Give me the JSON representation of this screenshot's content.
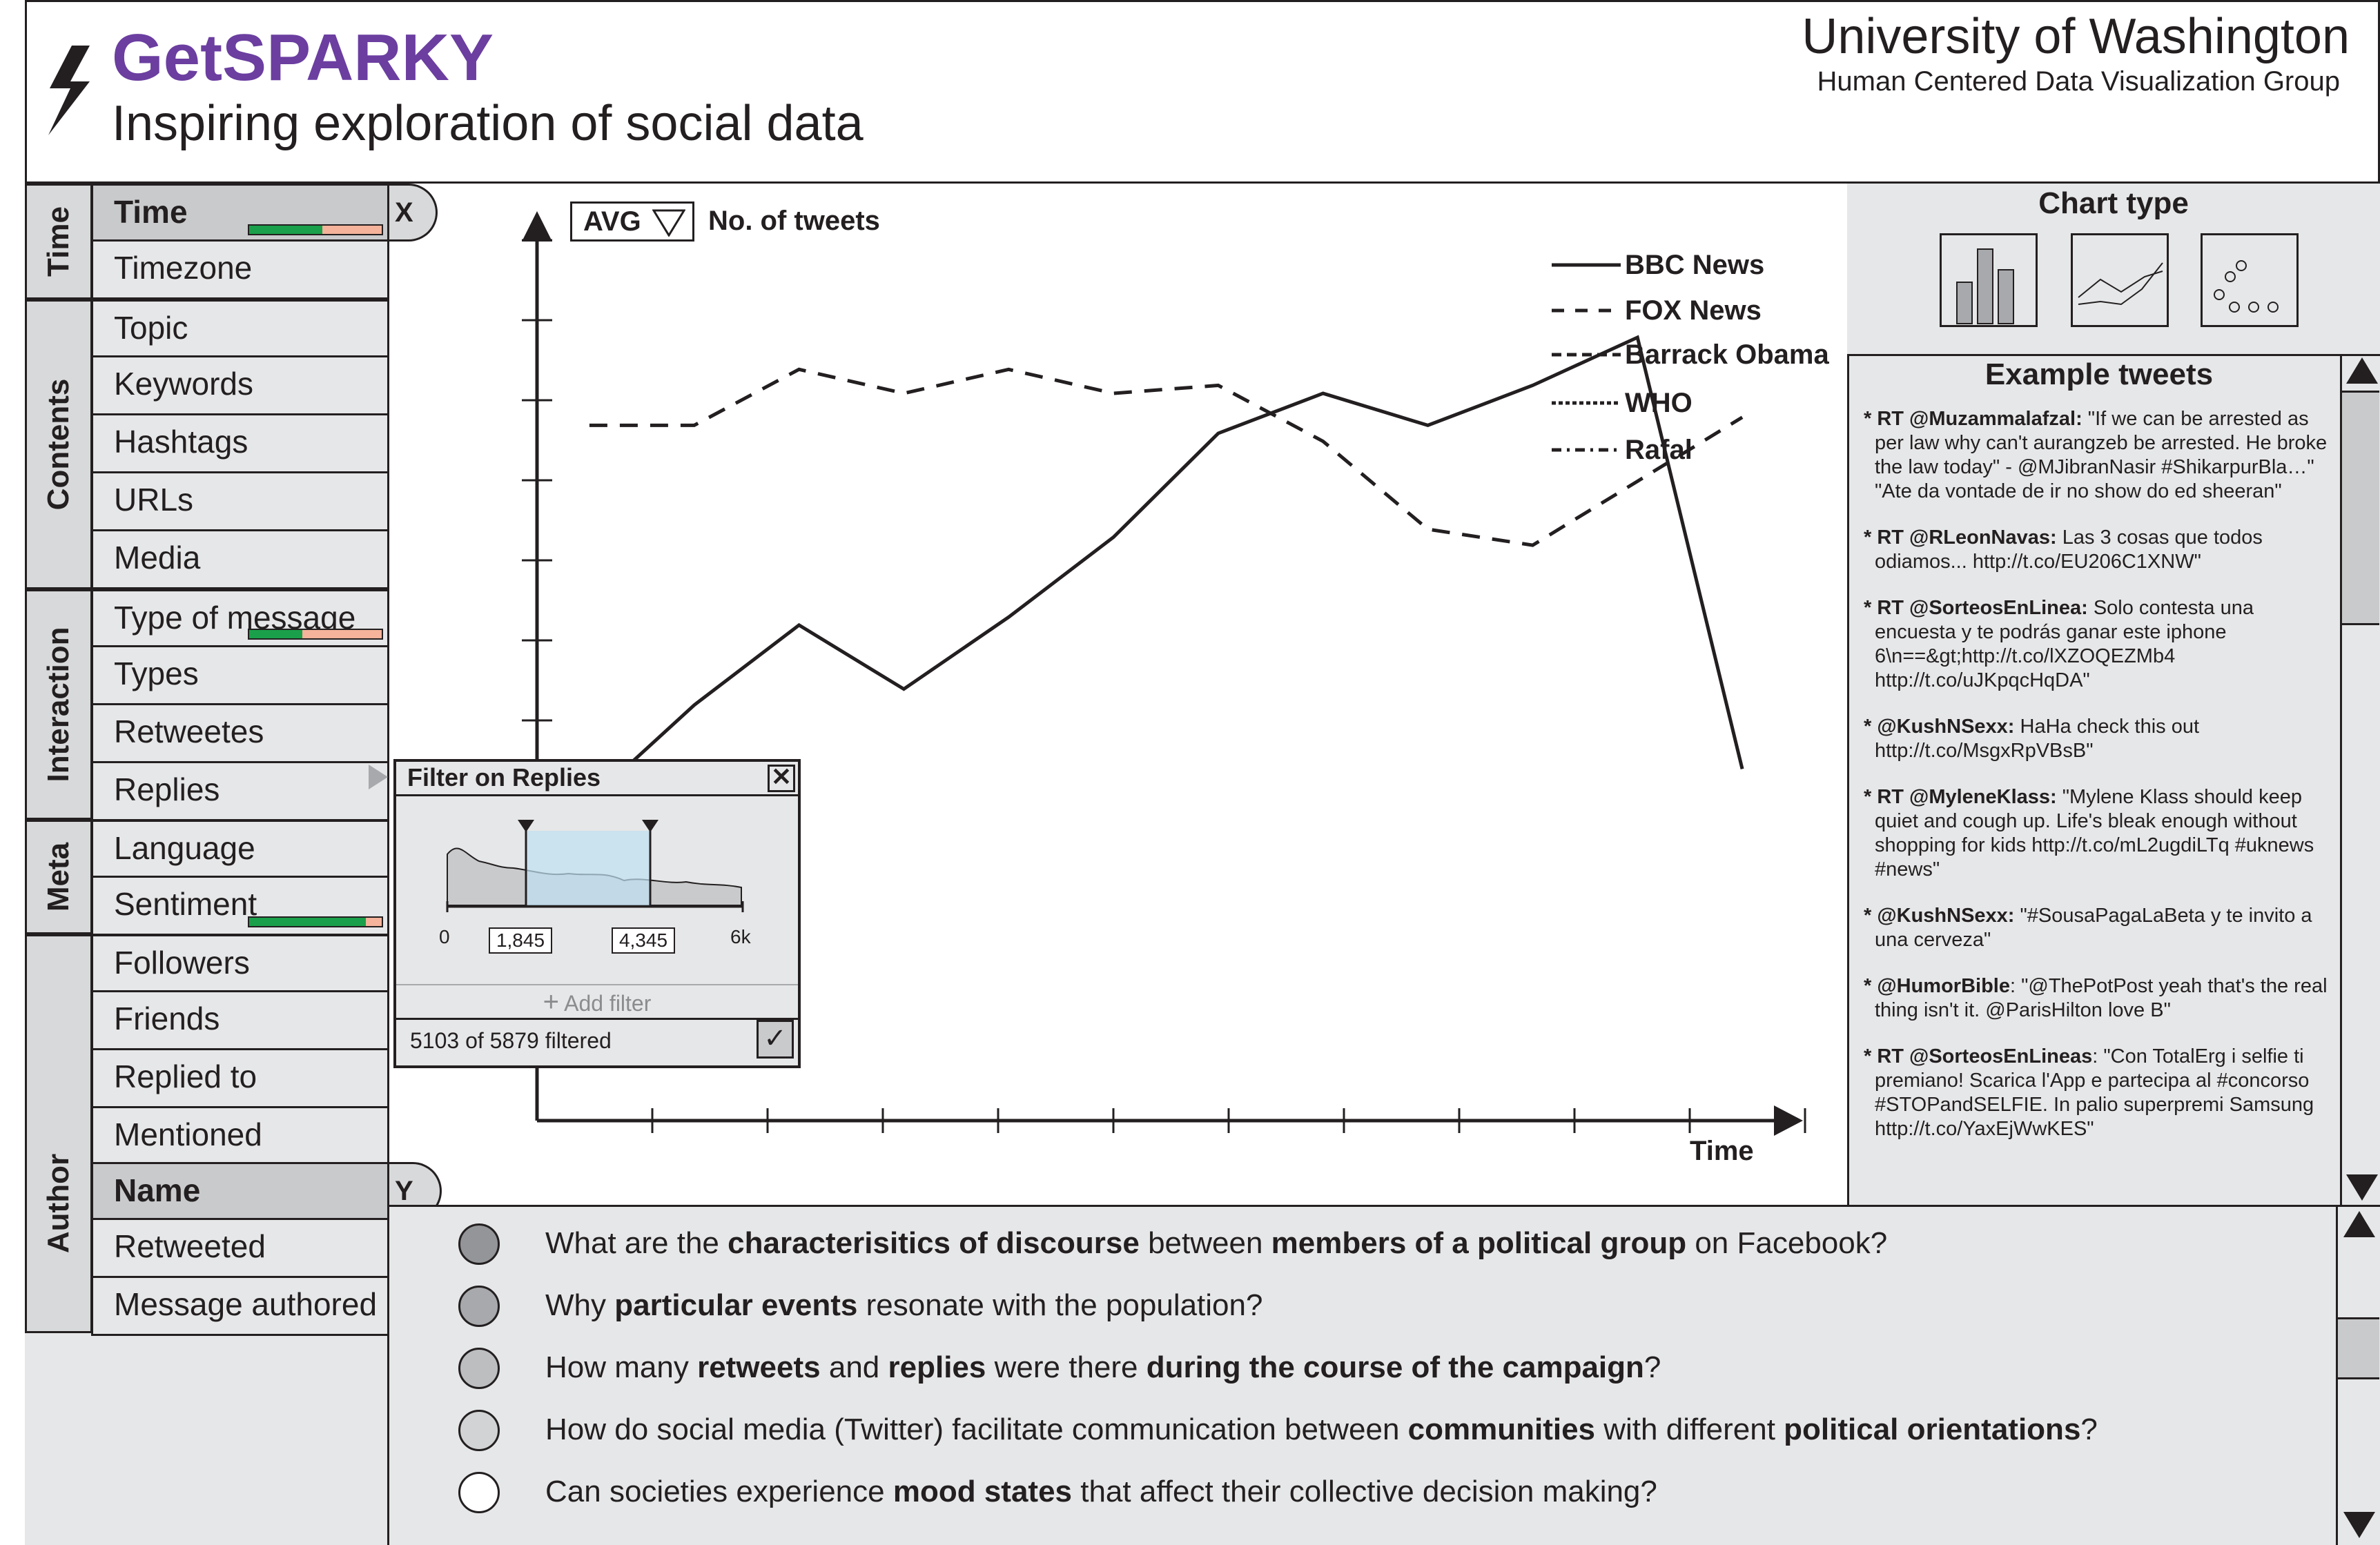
{
  "header": {
    "app_name": "GetSPARKY",
    "subtitle": "Inspiring exploration of social data",
    "university": "University of Washington",
    "group": "Human Centered Data Visualization Group",
    "logo_icon": "lightning-bolt-icon"
  },
  "sidebar": {
    "categories": [
      "Time",
      "Contents",
      "Interaction",
      "Meta",
      "Author"
    ],
    "items": [
      {
        "label": "Time",
        "highlight": true,
        "filter_fraction": 0.55
      },
      {
        "label": "Timezone"
      },
      {
        "label": "Topic"
      },
      {
        "label": "Keywords"
      },
      {
        "label": "Hashtags"
      },
      {
        "label": "URLs"
      },
      {
        "label": "Media"
      },
      {
        "label": "Type of message",
        "filter_fraction": 0.4
      },
      {
        "label": "Types"
      },
      {
        "label": "Retweetes"
      },
      {
        "label": "Replies"
      },
      {
        "label": "Language"
      },
      {
        "label": "Sentiment",
        "filter_fraction": 0.9
      },
      {
        "label": "Followers"
      },
      {
        "label": "Friends"
      },
      {
        "label": "Replied to"
      },
      {
        "label": "Mentioned"
      },
      {
        "label": "Name",
        "highlight": true
      },
      {
        "label": "Retweeted"
      },
      {
        "label": "Message authored"
      }
    ],
    "x_axis_tag": "X",
    "y_axis_tag": "Y"
  },
  "chart_controls": {
    "aggregate": "AVG",
    "y_measure": "No. of tweets",
    "x_measure": "Time"
  },
  "legend": [
    "BBC News",
    "FOX News",
    "Barrack Obama",
    "WHO",
    "Rafal"
  ],
  "chart_data": {
    "type": "line",
    "xlabel": "Time",
    "ylabel": "No. of tweets",
    "series": [
      {
        "name": "BBC News",
        "style": "solid",
        "x": [
          1,
          2,
          3,
          4,
          5,
          6,
          7,
          8,
          9,
          10,
          11,
          12
        ],
        "y": [
          4.0,
          5.2,
          6.2,
          5.4,
          6.3,
          7.3,
          8.6,
          9.1,
          8.7,
          9.2,
          9.8,
          4.4
        ]
      },
      {
        "name": "FOX News",
        "style": "dashed",
        "x": [
          1,
          2,
          3,
          4,
          5,
          6,
          7,
          8,
          9,
          10,
          11,
          12
        ],
        "y": [
          8.7,
          8.7,
          9.4,
          9.1,
          9.4,
          9.1,
          9.2,
          8.5,
          7.4,
          7.2,
          8.0,
          8.8
        ]
      }
    ]
  },
  "chart_type_panel": {
    "title": "Chart type",
    "options": [
      "bar-chart-icon",
      "line-chart-icon",
      "scatter-chart-icon"
    ]
  },
  "tweets_panel": {
    "title": "Example tweets",
    "tweets": [
      {
        "user": "RT @Muzammalafzal:",
        "text": " \"If we can be arrested as per law why can't aurangzeb be arrested. He broke the law today\" - @MJibranNasir #ShikarpurBla…\" \"Ate da vontade de ir no show do ed sheeran\""
      },
      {
        "user": "RT @RLeonNavas:",
        "text": " Las 3 cosas que todos odiamos... http://t.co/EU206C1XNW\""
      },
      {
        "user": "RT @SorteosEnLinea:",
        "text": " Solo contesta una encuesta y te podrás ganar este iphone 6\\n==&gt;http://t.co/lXZOQEZMb4 http://t.co/uJKpqcHqDA\""
      },
      {
        "user": "@KushNSexx:",
        "text": " HaHa check this out http://t.co/MsgxRpVBsB\""
      },
      {
        "user": "RT @MyleneKlass:",
        "text": " \"Mylene Klass should keep quiet and cough up. Life's bleak enough without shopping for kids http://t.co/mL2ugdiLTq #uknews #news\""
      },
      {
        "user": "@KushNSexx:",
        "text": " \"#SousaPagaLaBeta y te invito a una cerveza\""
      },
      {
        "user": "@HumorBible",
        "text": ": \"@ThePotPost yeah that's the real thing isn't it. @ParisHilton love B\""
      },
      {
        "user": "RT @SorteosEnLineas",
        "text": ": \"Con TotalErg i selfie ti premiano! Scarica l'App e partecipa al #concorso #STOPandSELFIE. In palio superpremi Samsung http://t.co/YaxEjWwKES\""
      }
    ]
  },
  "filter_popup": {
    "title": "Filter on Replies",
    "axis_min": "0",
    "axis_max": "6k",
    "range_low": "1,845",
    "range_high": "4,345",
    "add_filter": "Add filter",
    "status": "5103 of 5879 filtered"
  },
  "questions": [
    [
      {
        "t": "What are the "
      },
      {
        "t": "characterisitics of discourse",
        "b": true
      },
      {
        "t": " between "
      },
      {
        "t": "members of a political group",
        "b": true
      },
      {
        "t": " on Facebook?"
      }
    ],
    [
      {
        "t": "Why "
      },
      {
        "t": "particular events",
        "b": true
      },
      {
        "t": " resonate with the population?"
      }
    ],
    [
      {
        "t": "How many "
      },
      {
        "t": "retweets",
        "b": true
      },
      {
        "t": " and "
      },
      {
        "t": "replies",
        "b": true
      },
      {
        "t": " were there "
      },
      {
        "t": "during the course of the campaign",
        "b": true
      },
      {
        "t": "?"
      }
    ],
    [
      {
        "t": "How do social media (Twitter) facilitate communication between "
      },
      {
        "t": "communities",
        "b": true
      },
      {
        "t": " with different "
      },
      {
        "t": "political orientations",
        "b": true
      },
      {
        "t": "?"
      }
    ],
    [
      {
        "t": "Can societies experience "
      },
      {
        "t": "mood states",
        "b": true
      },
      {
        "t": " that affect their collective decision making?"
      }
    ]
  ]
}
